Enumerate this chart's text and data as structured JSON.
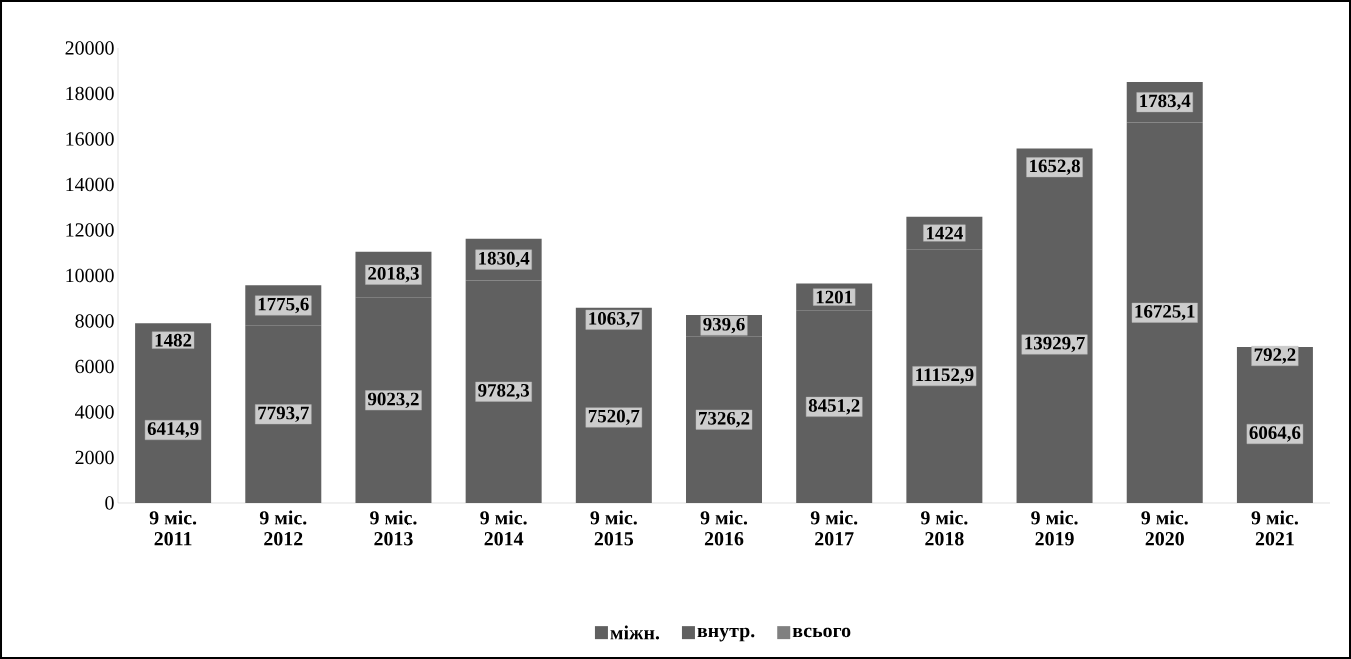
{
  "chart_data": {
    "type": "bar",
    "stacked": true,
    "categories": [
      "9 міс.\n2011",
      "9 міс.\n2012",
      "9 міс.\n2013",
      "9 міс.\n2014",
      "9 міс.\n2015",
      "9 міс.\n2016",
      "9 міс.\n2017",
      "9 міс.\n2018",
      "9 міс.\n2019",
      "9 міс.\n2020",
      "9 міс.\n2021"
    ],
    "series": [
      {
        "name": "міжн.",
        "color": "#606060",
        "values": [
          6414.9,
          7793.7,
          9023.2,
          9782.3,
          7520.7,
          7326.2,
          8451.2,
          11152.9,
          13929.7,
          16725.1,
          6064.6
        ],
        "value_labels": [
          "6414,9",
          "7793,7",
          "9023,2",
          "9782,3",
          "7520,7",
          "7326,2",
          "8451,2",
          "11152,9",
          "13929,7",
          "16725,1",
          "6064,6"
        ]
      },
      {
        "name": "внутр.",
        "color": "#606060",
        "values": [
          1482,
          1775.6,
          2018.3,
          1830.4,
          1063.7,
          939.6,
          1201,
          1424,
          1652.8,
          1783.4,
          792.2
        ],
        "value_labels": [
          "1482",
          "1775,6",
          "2018,3",
          "1830,4",
          "1063,7",
          "939,6",
          "1201",
          "1424",
          "1652,8",
          "1783,4",
          "792,2"
        ]
      },
      {
        "name": "всього",
        "color": "#808080",
        "values": [
          null,
          null,
          null,
          null,
          null,
          null,
          null,
          null,
          null,
          null,
          null
        ]
      }
    ],
    "ylim": [
      0,
      20000
    ],
    "yticks": [
      0,
      2000,
      4000,
      6000,
      8000,
      10000,
      12000,
      14000,
      16000,
      18000,
      20000
    ],
    "grid": false,
    "legend": "bottom"
  }
}
